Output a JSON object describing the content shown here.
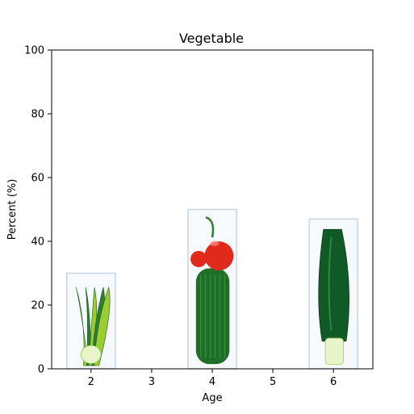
{
  "chart_data": {
    "type": "bar",
    "title": "Vegetable",
    "xlabel": "Age",
    "ylabel": "Percent (%)",
    "x_ticks": [
      2,
      3,
      4,
      5,
      6
    ],
    "xlim": [
      1.35,
      6.65
    ],
    "ylim": [
      0,
      100
    ],
    "y_ticks": [
      0,
      20,
      40,
      60,
      80,
      100
    ],
    "grid": false,
    "bars": [
      {
        "x": 2,
        "value": 30,
        "image": "bok-choy-icon"
      },
      {
        "x": 4,
        "value": 50,
        "image": "tomato-and-cucumber-icon"
      },
      {
        "x": 6,
        "value": 47,
        "image": "zucchini-icon"
      }
    ],
    "colors": {
      "leaf_light": "#9acd32",
      "leaf_dark": "#2e7d32",
      "stem": "#e8f5c8",
      "tomato": "#e02a1b",
      "cucumber": "#1f6e2a",
      "zucchini": "#0f5a25",
      "frame": "#c8d4e0"
    }
  }
}
